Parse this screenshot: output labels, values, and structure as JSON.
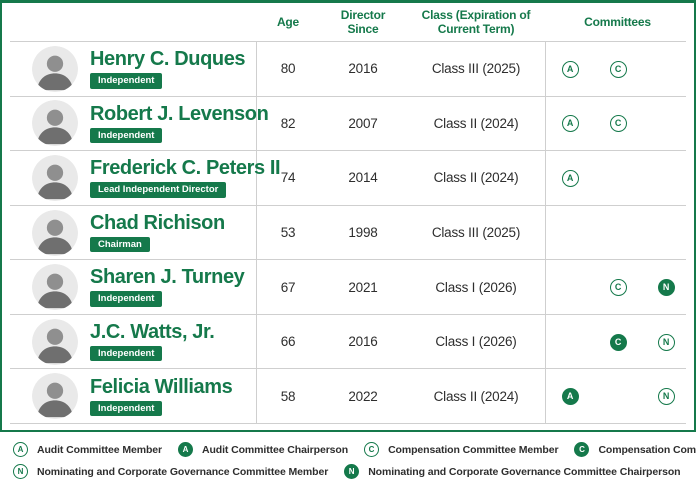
{
  "colors": {
    "green": "#15794B",
    "row_border": "#cfcfcf",
    "text_dark": "#2e2e2e",
    "badge_text": "#ffffff",
    "avatar_bg": "#e9e9e9"
  },
  "header": {
    "name_col": "",
    "age": "Age",
    "since": "Director\nSince",
    "class_term": "Class (Expiration of\nCurrent Term)",
    "committees": "Committees"
  },
  "directors": [
    {
      "name": "Henry C. Duques",
      "badge": "Independent",
      "age": "80",
      "since": "2016",
      "class_term": "Class III (2025)",
      "committees": [
        {
          "letter": "A",
          "chair": false
        },
        {
          "letter": "C",
          "chair": false
        }
      ]
    },
    {
      "name": "Robert J. Levenson",
      "badge": "Independent",
      "age": "82",
      "since": "2007",
      "class_term": "Class II (2024)",
      "committees": [
        {
          "letter": "A",
          "chair": false
        },
        {
          "letter": "C",
          "chair": false
        }
      ]
    },
    {
      "name": "Frederick C. Peters II",
      "badge": "Lead Independent Director",
      "age": "74",
      "since": "2014",
      "class_term": "Class II (2024)",
      "committees": [
        {
          "letter": "A",
          "chair": false
        }
      ]
    },
    {
      "name": "Chad Richison",
      "badge": "Chairman",
      "age": "53",
      "since": "1998",
      "class_term": "Class III (2025)",
      "committees": []
    },
    {
      "name": "Sharen J. Turney",
      "badge": "Independent",
      "age": "67",
      "since": "2021",
      "class_term": "Class I (2026)",
      "committees": [
        {
          "letter": "C",
          "chair": false
        },
        {
          "letter": "N",
          "chair": true
        }
      ]
    },
    {
      "name": "J.C. Watts, Jr.",
      "badge": "Independent",
      "age": "66",
      "since": "2016",
      "class_term": "Class I (2026)",
      "committees": [
        {
          "letter": "C",
          "chair": true
        },
        {
          "letter": "N",
          "chair": false
        }
      ]
    },
    {
      "name": "Felicia Williams",
      "badge": "Independent",
      "age": "58",
      "since": "2022",
      "class_term": "Class II (2024)",
      "committees": [
        {
          "letter": "A",
          "chair": true
        },
        {
          "letter": "N",
          "chair": false
        }
      ]
    }
  ],
  "legend": {
    "rows": [
      [
        {
          "letter": "A",
          "chair": false,
          "label": "Audit Committee Member"
        },
        {
          "letter": "A",
          "chair": true,
          "label": "Audit Committee Chairperson"
        },
        {
          "letter": "C",
          "chair": false,
          "label": "Compensation Committee Member"
        },
        {
          "letter": "C",
          "chair": true,
          "label": "Compensation Committee Chairperson"
        }
      ],
      [
        {
          "letter": "N",
          "chair": false,
          "label": "Nominating and Corporate Governance Committee Member"
        },
        {
          "letter": "N",
          "chair": true,
          "label": "Nominating and Corporate Governance Committee Chairperson"
        }
      ]
    ]
  }
}
